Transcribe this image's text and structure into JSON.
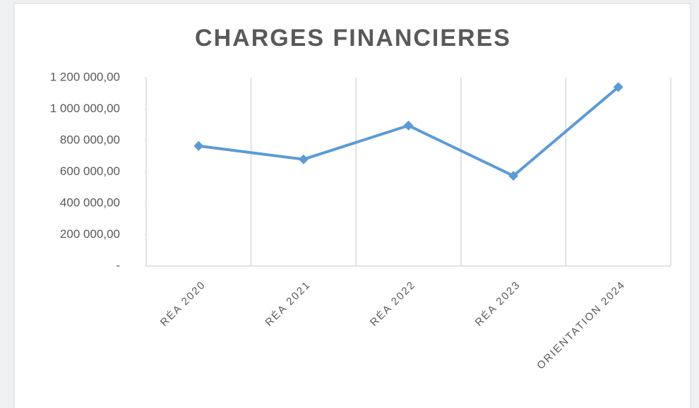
{
  "chart_data": {
    "type": "line",
    "title": "CHARGES  FINANCIERES",
    "categories": [
      "RÉA 2020",
      "RÉA  2021",
      "RÉA 2022",
      "RÉA 2023",
      "ORIENTATION 2024"
    ],
    "series": [
      {
        "name": "Charges financières",
        "color": "#5b9bd5",
        "values": [
          765000,
          680000,
          895000,
          575000,
          1140000
        ]
      }
    ],
    "ylim": [
      0,
      1200000
    ],
    "yticks": [
      {
        "value": 0,
        "label": "-"
      },
      {
        "value": 200000,
        "label": "200 000,00"
      },
      {
        "value": 400000,
        "label": "400 000,00"
      },
      {
        "value": 600000,
        "label": "600 000,00"
      },
      {
        "value": 800000,
        "label": "800 000,00"
      },
      {
        "value": 1000000,
        "label": "1 000 000,00"
      },
      {
        "value": 1200000,
        "label": "1 200 000,00"
      }
    ],
    "grid": "vertical",
    "legend": false
  }
}
